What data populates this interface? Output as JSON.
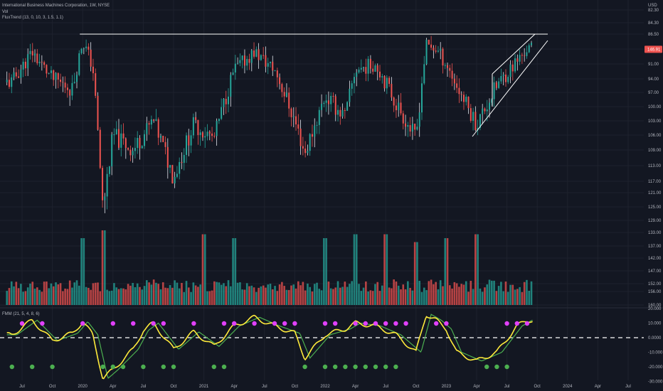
{
  "header": {
    "title": "International Business Machines Corporation, 1W, NYSE",
    "vol_label": "Vol",
    "flux_label": "FluxTrend (13, 0, 10, 3, 1.5, 1.1)",
    "fmm_label": "FMM (21, 5, 4, 8, 6)",
    "currency": "USD"
  },
  "colors": {
    "background": "#131722",
    "up": "#26a69a",
    "down": "#ef5350",
    "neutral": "#e0e3eb",
    "osc_fast": "#ffeb3b",
    "osc_slow": "#4caf50",
    "dot_top": "#e040fb",
    "dot_bottom": "#4caf50",
    "price_tag": "#ef5350"
  },
  "chart_data": [
    {
      "type": "candlestick",
      "title": "International Business Machines Corporation, 1W, NYSE",
      "y_ticks": [
        "160.00",
        "156.00",
        "152.00",
        "147.00",
        "142.00",
        "137.00",
        "133.00",
        "129.00",
        "125.00",
        "121.00",
        "117.00",
        "113.00",
        "109.00",
        "106.00",
        "103.00",
        "100.00",
        "97.00",
        "94.00",
        "91.00",
        "89.00",
        "86.50",
        "84.30",
        "82.30"
      ],
      "x_ticks": [
        "Jul",
        "Oct",
        "2020",
        "Apr",
        "Jul",
        "Oct",
        "2021",
        "Apr",
        "Jul",
        "Oct",
        "2022",
        "Apr",
        "Jul",
        "Oct",
        "2023",
        "Apr",
        "Jul",
        "Oct",
        "2024",
        "Apr",
        "Jul"
      ],
      "last_price": "146.91",
      "resistance_level": 152.0,
      "channel": {
        "from": "2023-04",
        "to": "2023-09",
        "type": "rising-wedge"
      },
      "anchors": [
        {
          "date": "2019-06",
          "close": 136
        },
        {
          "date": "2019-08",
          "close": 146
        },
        {
          "date": "2019-10",
          "close": 137
        },
        {
          "date": "2019-12",
          "close": 134
        },
        {
          "date": "2020-01",
          "close": 150
        },
        {
          "date": "2020-02",
          "close": 141
        },
        {
          "date": "2020-03",
          "close": 102
        },
        {
          "date": "2020-04",
          "close": 121
        },
        {
          "date": "2020-06",
          "close": 117
        },
        {
          "date": "2020-08",
          "close": 125
        },
        {
          "date": "2020-10",
          "close": 110
        },
        {
          "date": "2020-12",
          "close": 124
        },
        {
          "date": "2021-02",
          "close": 120
        },
        {
          "date": "2021-04",
          "close": 140
        },
        {
          "date": "2021-06",
          "close": 146
        },
        {
          "date": "2021-08",
          "close": 140
        },
        {
          "date": "2021-10",
          "close": 125
        },
        {
          "date": "2021-11",
          "close": 116
        },
        {
          "date": "2022-01",
          "close": 132
        },
        {
          "date": "2022-03",
          "close": 126
        },
        {
          "date": "2022-04",
          "close": 140
        },
        {
          "date": "2022-06",
          "close": 142
        },
        {
          "date": "2022-08",
          "close": 130
        },
        {
          "date": "2022-10",
          "close": 120
        },
        {
          "date": "2022-11",
          "close": 148
        },
        {
          "date": "2022-12",
          "close": 147
        },
        {
          "date": "2023-01",
          "close": 142
        },
        {
          "date": "2023-02",
          "close": 135
        },
        {
          "date": "2023-04",
          "close": 124
        },
        {
          "date": "2023-06",
          "close": 135
        },
        {
          "date": "2023-08",
          "close": 143
        },
        {
          "date": "2023-09",
          "close": 147
        }
      ]
    },
    {
      "type": "bar",
      "name": "Vol",
      "note": "weekly volume, colored by candle direction",
      "spikes": [
        {
          "date": "2020-01",
          "relative": 0.8
        },
        {
          "date": "2020-03",
          "relative": 1.0
        },
        {
          "date": "2021-01",
          "relative": 0.9
        },
        {
          "date": "2021-04",
          "relative": 0.8
        },
        {
          "date": "2022-01",
          "relative": 0.8
        },
        {
          "date": "2022-04",
          "relative": 0.9
        },
        {
          "date": "2022-07",
          "relative": 0.9
        },
        {
          "date": "2022-10",
          "relative": 0.7
        },
        {
          "date": "2023-01",
          "relative": 0.8
        },
        {
          "date": "2023-04",
          "relative": 0.9
        }
      ]
    },
    {
      "type": "line",
      "name": "FMM (21, 5, 4, 8, 6)",
      "y_ticks": [
        "20.000",
        "10.000",
        "0.0000",
        "-10.000",
        "-20.000",
        "-30.000"
      ],
      "ylim": [
        -32,
        22
      ],
      "anchors": [
        {
          "date": "2019-06",
          "value": 2
        },
        {
          "date": "2019-08",
          "value": 12
        },
        {
          "date": "2019-10",
          "value": -2
        },
        {
          "date": "2019-12",
          "value": 3
        },
        {
          "date": "2020-01",
          "value": 11
        },
        {
          "date": "2020-02",
          "value": 2
        },
        {
          "date": "2020-03",
          "value": -28
        },
        {
          "date": "2020-04",
          "value": -22
        },
        {
          "date": "2020-06",
          "value": -8
        },
        {
          "date": "2020-07",
          "value": 5
        },
        {
          "date": "2020-08",
          "value": 10
        },
        {
          "date": "2020-10",
          "value": -8
        },
        {
          "date": "2020-12",
          "value": 4
        },
        {
          "date": "2021-02",
          "value": -6
        },
        {
          "date": "2021-04",
          "value": 8
        },
        {
          "date": "2021-06",
          "value": 14
        },
        {
          "date": "2021-08",
          "value": 8
        },
        {
          "date": "2021-10",
          "value": 3
        },
        {
          "date": "2021-11",
          "value": -14
        },
        {
          "date": "2022-01",
          "value": 2
        },
        {
          "date": "2022-03",
          "value": 6
        },
        {
          "date": "2022-04",
          "value": 10
        },
        {
          "date": "2022-06",
          "value": 8
        },
        {
          "date": "2022-08",
          "value": 2
        },
        {
          "date": "2022-10",
          "value": -10
        },
        {
          "date": "2022-11",
          "value": 16
        },
        {
          "date": "2022-12",
          "value": 12
        },
        {
          "date": "2023-01",
          "value": 6
        },
        {
          "date": "2023-02",
          "value": -10
        },
        {
          "date": "2023-04",
          "value": -16
        },
        {
          "date": "2023-06",
          "value": -10
        },
        {
          "date": "2023-08",
          "value": 8
        },
        {
          "date": "2023-09",
          "value": 12
        }
      ],
      "top_dots": [
        "2019-07",
        "2019-09",
        "2020-01",
        "2020-04",
        "2020-06",
        "2020-08",
        "2020-09",
        "2020-12",
        "2021-03",
        "2021-04",
        "2021-06",
        "2021-08",
        "2021-09",
        "2021-10",
        "2022-01",
        "2022-02",
        "2022-04",
        "2022-05",
        "2022-06",
        "2022-07",
        "2022-08",
        "2022-09",
        "2022-12",
        "2023-01",
        "2023-07",
        "2023-08",
        "2023-09"
      ],
      "bottom_dots": [
        "2019-06",
        "2019-08",
        "2019-10",
        "2020-03",
        "2020-04",
        "2020-05",
        "2020-07",
        "2020-09",
        "2020-10",
        "2021-02",
        "2021-03",
        "2021-11",
        "2022-01",
        "2022-02",
        "2022-03",
        "2022-04",
        "2022-05",
        "2022-06",
        "2022-07",
        "2022-08",
        "2023-05",
        "2023-06",
        "2023-07"
      ]
    }
  ]
}
